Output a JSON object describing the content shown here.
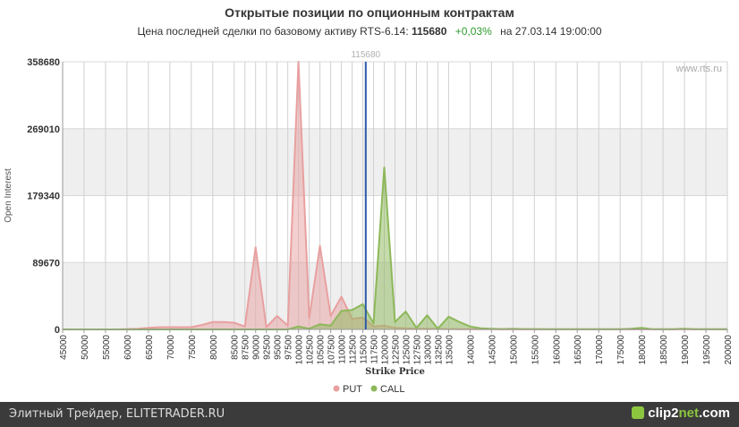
{
  "header": {
    "title": "Открытые позиции по опционным контрактам",
    "subtitle_prefix": "Цена последней сделки по базовому активу RTS-6.14:",
    "price": "115680",
    "change": "+0,03%",
    "date_text": "на 27.03.14 19:00:00"
  },
  "watermark": "www.rts.ru",
  "footer": {
    "source_text": "Элитный Трейдер, ELITETRADER.RU",
    "logo_main": "clip2",
    "logo_accent": "net",
    "logo_suffix": ".com"
  },
  "chart_data": {
    "type": "area",
    "xlabel": "Strike Price",
    "ylabel": "Open Interest",
    "ylim": [
      0,
      358680
    ],
    "yticks": [
      0,
      89670,
      179340,
      269010,
      358680
    ],
    "x": [
      45000,
      47500,
      50000,
      52500,
      55000,
      57500,
      60000,
      62500,
      65000,
      67500,
      70000,
      72500,
      75000,
      77500,
      80000,
      82500,
      85000,
      87500,
      90000,
      92500,
      95000,
      97500,
      100000,
      102500,
      105000,
      107500,
      110000,
      112500,
      115000,
      117500,
      120000,
      122500,
      125000,
      127500,
      130000,
      132500,
      135000,
      137500,
      140000,
      142500,
      145000,
      147500,
      150000,
      152500,
      155000,
      157500,
      160000,
      162500,
      165000,
      167500,
      170000,
      172500,
      175000,
      177500,
      180000,
      182500,
      185000,
      187500,
      190000,
      192500,
      195000,
      197500,
      200000
    ],
    "xtick_labels": [
      "45000",
      "50000",
      "55000",
      "60000",
      "65000",
      "70000",
      "75000",
      "80000",
      "85000",
      "87500",
      "90000",
      "92500",
      "95000",
      "97500",
      "100000",
      "102500",
      "105000",
      "107500",
      "110000",
      "112500",
      "115000",
      "117500",
      "120000",
      "122500",
      "125000",
      "127500",
      "130000",
      "132500",
      "135000",
      "140000",
      "145000",
      "150000",
      "155000",
      "160000",
      "165000",
      "170000",
      "175000",
      "180000",
      "185000",
      "190000",
      "195000",
      "200000"
    ],
    "series": [
      {
        "name": "PUT",
        "color": "#e8a0a0",
        "values": [
          0,
          0,
          0,
          0,
          0,
          0,
          500,
          1000,
          2000,
          3000,
          3000,
          3000,
          3000,
          6000,
          10000,
          10000,
          9000,
          4000,
          110000,
          3000,
          18000,
          5000,
          358680,
          15000,
          112000,
          18000,
          44000,
          14000,
          16000,
          4000,
          5000,
          2000,
          1500,
          1000,
          800,
          600,
          500,
          400,
          300,
          200,
          200,
          100,
          100,
          100,
          100,
          100,
          100,
          100,
          100,
          100,
          100,
          100,
          100,
          100,
          100,
          100,
          100,
          100,
          100,
          100,
          100,
          100,
          100
        ]
      },
      {
        "name": "CALL",
        "color": "#8db85a",
        "values": [
          0,
          0,
          0,
          0,
          0,
          0,
          0,
          0,
          0,
          0,
          0,
          0,
          0,
          0,
          0,
          0,
          0,
          0,
          0,
          0,
          0,
          0,
          4000,
          1000,
          7000,
          5000,
          25000,
          26000,
          34000,
          8000,
          217000,
          10000,
          24000,
          2000,
          19000,
          1000,
          17000,
          10000,
          4000,
          1500,
          1000,
          500,
          1000,
          500,
          500,
          300,
          300,
          300,
          300,
          300,
          300,
          300,
          300,
          1000,
          2000,
          300,
          300,
          300,
          1000,
          300,
          300,
          300,
          300
        ]
      }
    ],
    "marker": {
      "x": 115680,
      "label": "115680",
      "color": "#2b5aa8"
    },
    "grid": true,
    "legend": "bottom-center"
  }
}
